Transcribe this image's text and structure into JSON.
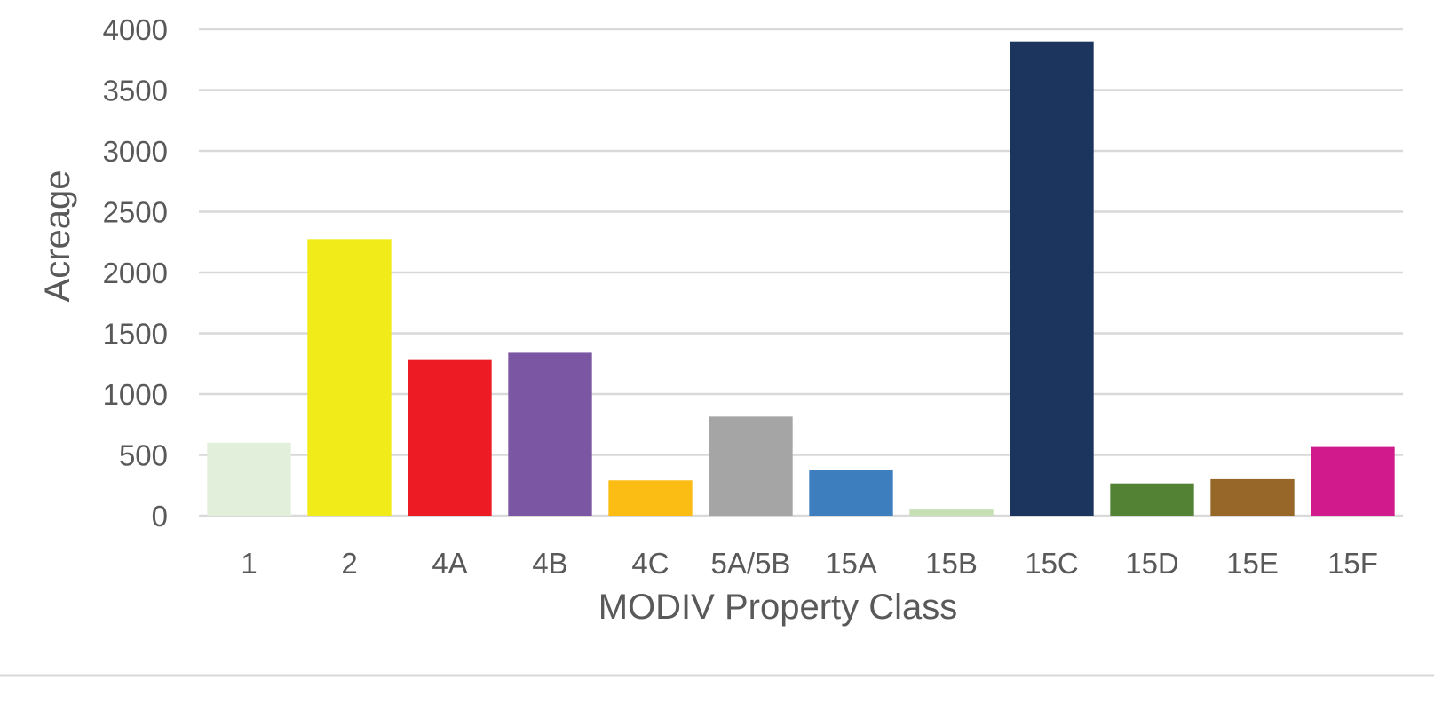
{
  "chart_data": {
    "type": "bar",
    "title": "",
    "xlabel": "MODIV Property Class",
    "ylabel": "Acreage",
    "ylim": [
      0,
      4000
    ],
    "yticks": [
      0,
      500,
      1000,
      1500,
      2000,
      2500,
      3000,
      3500,
      4000
    ],
    "grid": true,
    "legend": "none",
    "categories": [
      "1",
      "2",
      "4A",
      "4B",
      "4C",
      "5A/5B",
      "15A",
      "15B",
      "15C",
      "15D",
      "15E",
      "15F"
    ],
    "values": [
      600,
      2275,
      1280,
      1340,
      290,
      815,
      375,
      50,
      3900,
      265,
      300,
      565
    ],
    "colors": [
      "#e2efda",
      "#f2eb1a",
      "#ed1c24",
      "#7a56a3",
      "#fbbd14",
      "#a5a5a5",
      "#3d7ebf",
      "#c6e0b4",
      "#1c355e",
      "#548235",
      "#97672a",
      "#d11a8c"
    ]
  }
}
